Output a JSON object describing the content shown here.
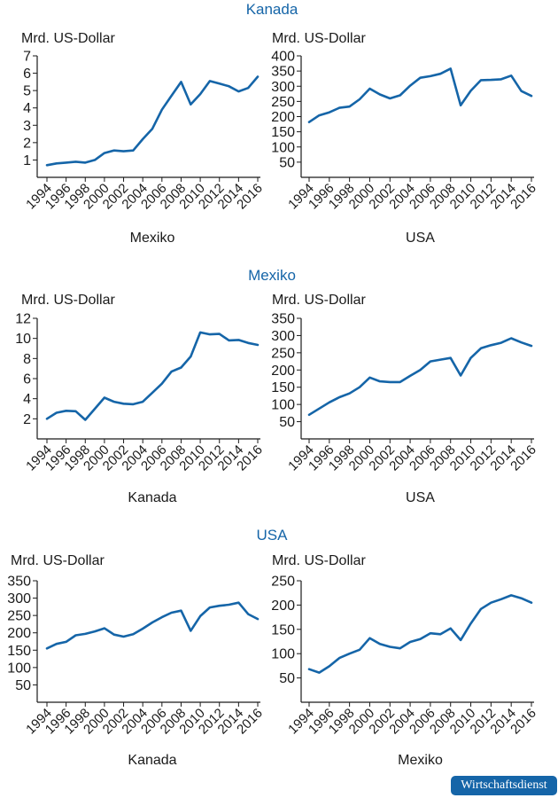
{
  "sections": [
    {
      "title": "Kanada"
    },
    {
      "title": "Mexiko"
    },
    {
      "title": "USA"
    }
  ],
  "badge": "Wirtschaftsdienst",
  "colors": {
    "line": "#1565a8",
    "title": "#1565a8",
    "axis": "#1a1a1a",
    "text": "#1a1a1a"
  },
  "chart_data": [
    {
      "type": "line",
      "section": "Kanada",
      "position": "left",
      "ylabel": "Mrd. US-Dollar",
      "xlabel": "Mexiko",
      "x": [
        1994,
        1995,
        1996,
        1997,
        1998,
        1999,
        2000,
        2001,
        2002,
        2003,
        2004,
        2005,
        2006,
        2007,
        2008,
        2009,
        2010,
        2011,
        2012,
        2013,
        2014,
        2015,
        2016
      ],
      "values": [
        0.7,
        0.8,
        0.85,
        0.9,
        0.85,
        1.0,
        1.4,
        1.55,
        1.5,
        1.55,
        2.2,
        2.8,
        3.9,
        4.7,
        5.5,
        4.2,
        4.8,
        5.55,
        5.4,
        5.25,
        4.95,
        5.15,
        5.8
      ],
      "ylim": [
        0,
        7
      ],
      "yticks": [
        1,
        2,
        3,
        4,
        5,
        6,
        7
      ],
      "xticks": [
        1994,
        1996,
        1998,
        2000,
        2002,
        2004,
        2006,
        2008,
        2010,
        2012,
        2014,
        2016
      ]
    },
    {
      "type": "line",
      "section": "Kanada",
      "position": "right",
      "ylabel": "Mrd. US-Dollar",
      "xlabel": "USA",
      "x": [
        1994,
        1995,
        1996,
        1997,
        1998,
        1999,
        2000,
        2001,
        2002,
        2003,
        2004,
        2005,
        2006,
        2007,
        2008,
        2009,
        2010,
        2011,
        2012,
        2013,
        2014,
        2015,
        2016
      ],
      "values": [
        182,
        204,
        214,
        229,
        233,
        257,
        292,
        273,
        260,
        270,
        302,
        328,
        333,
        341,
        358,
        237,
        285,
        320,
        321,
        323,
        335,
        284,
        268
      ],
      "ylim": [
        0,
        400
      ],
      "yticks": [
        50,
        100,
        150,
        200,
        250,
        300,
        350,
        400
      ],
      "xticks": [
        1994,
        1996,
        1998,
        2000,
        2002,
        2004,
        2006,
        2008,
        2010,
        2012,
        2014,
        2016
      ]
    },
    {
      "type": "line",
      "section": "Mexiko",
      "position": "left",
      "ylabel": "Mrd. US-Dollar",
      "xlabel": "Kanada",
      "x": [
        1994,
        1995,
        1996,
        1997,
        1998,
        1999,
        2000,
        2001,
        2002,
        2003,
        2004,
        2005,
        2006,
        2007,
        2008,
        2009,
        2010,
        2011,
        2012,
        2013,
        2014,
        2015,
        2016
      ],
      "values": [
        2.0,
        2.6,
        2.8,
        2.75,
        1.9,
        3.0,
        4.1,
        3.7,
        3.5,
        3.45,
        3.7,
        4.6,
        5.5,
        6.7,
        7.1,
        8.2,
        10.6,
        10.4,
        10.45,
        9.8,
        9.85,
        9.55,
        9.35
      ],
      "ylim": [
        0,
        12
      ],
      "yticks": [
        2,
        4,
        6,
        8,
        10,
        12
      ],
      "xticks": [
        1994,
        1996,
        1998,
        2000,
        2002,
        2004,
        2006,
        2008,
        2010,
        2012,
        2014,
        2016
      ]
    },
    {
      "type": "line",
      "section": "Mexiko",
      "position": "right",
      "ylabel": "Mrd. US-Dollar",
      "xlabel": "USA",
      "x": [
        1994,
        1995,
        1996,
        1997,
        1998,
        1999,
        2000,
        2001,
        2002,
        2003,
        2004,
        2005,
        2006,
        2007,
        2008,
        2009,
        2010,
        2011,
        2012,
        2013,
        2014,
        2015,
        2016
      ],
      "values": [
        70,
        88,
        106,
        121,
        132,
        150,
        178,
        167,
        165,
        165,
        183,
        200,
        225,
        230,
        235,
        184,
        235,
        263,
        272,
        279,
        292,
        280,
        270
      ],
      "ylim": [
        0,
        350
      ],
      "yticks": [
        50,
        100,
        150,
        200,
        250,
        300,
        350
      ],
      "xticks": [
        1994,
        1996,
        1998,
        2000,
        2002,
        2004,
        2006,
        2008,
        2010,
        2012,
        2014,
        2016
      ]
    },
    {
      "type": "line",
      "section": "USA",
      "position": "left",
      "ylabel": "Mrd. US-Dollar",
      "xlabel": "Kanada",
      "x": [
        1994,
        1995,
        1996,
        1997,
        1998,
        1999,
        2000,
        2001,
        2002,
        2003,
        2004,
        2005,
        2006,
        2007,
        2008,
        2009,
        2010,
        2011,
        2012,
        2013,
        2014,
        2015,
        2016
      ],
      "values": [
        155,
        168,
        174,
        193,
        197,
        204,
        213,
        195,
        189,
        196,
        212,
        230,
        245,
        258,
        264,
        206,
        248,
        273,
        278,
        281,
        287,
        254,
        240
      ],
      "ylim": [
        0,
        350
      ],
      "yticks": [
        50,
        100,
        150,
        200,
        250,
        300,
        350
      ],
      "xticks": [
        1994,
        1996,
        1998,
        2000,
        2002,
        2004,
        2006,
        2008,
        2010,
        2012,
        2014,
        2016
      ]
    },
    {
      "type": "line",
      "section": "USA",
      "position": "right",
      "ylabel": "Mrd. US-Dollar",
      "xlabel": "Mexiko",
      "x": [
        1994,
        1995,
        1996,
        1997,
        1998,
        1999,
        2000,
        2001,
        2002,
        2003,
        2004,
        2005,
        2006,
        2007,
        2008,
        2009,
        2010,
        2011,
        2012,
        2013,
        2014,
        2015,
        2016
      ],
      "values": [
        68,
        61,
        74,
        91,
        100,
        108,
        132,
        120,
        114,
        111,
        124,
        130,
        142,
        140,
        152,
        128,
        162,
        192,
        205,
        212,
        220,
        214,
        205
      ],
      "ylim": [
        0,
        250
      ],
      "yticks": [
        50,
        100,
        150,
        200,
        250
      ],
      "xticks": [
        1994,
        1996,
        1998,
        2000,
        2002,
        2004,
        2006,
        2008,
        2010,
        2012,
        2014,
        2016
      ]
    }
  ]
}
